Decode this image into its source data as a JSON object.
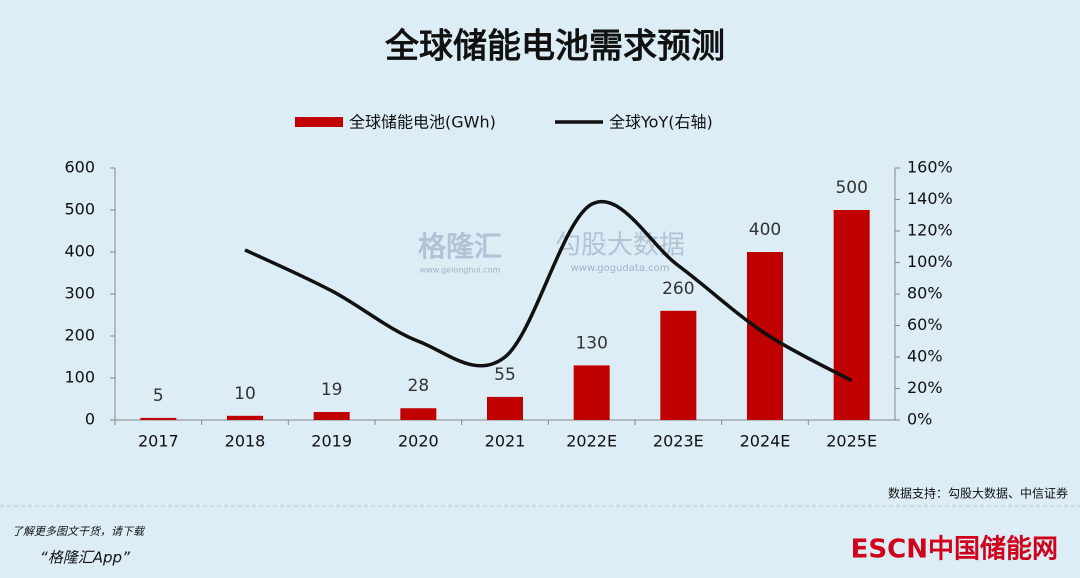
{
  "chart_data": {
    "type": "bar-line",
    "title": "全球储能电池需求预测",
    "categories": [
      "2017",
      "2018",
      "2019",
      "2020",
      "2021",
      "2022E",
      "2023E",
      "2024E",
      "2025E"
    ],
    "series": [
      {
        "name": "全球储能电池(GWh)",
        "type": "bar",
        "color": "#c00000",
        "values": [
          5,
          10,
          19,
          28,
          55,
          130,
          260,
          400,
          500
        ]
      },
      {
        "name": "全球YoY(右轴)",
        "type": "line",
        "axis": "y2",
        "color": "#111111",
        "values": [
          null,
          108,
          82,
          50,
          40,
          137,
          98,
          55,
          25
        ]
      }
    ],
    "ylim": [
      0,
      600
    ],
    "yticks": [
      0,
      100,
      200,
      300,
      400,
      500,
      600
    ],
    "y2lim": [
      0,
      160
    ],
    "y2ticks": [
      {
        "value": 0,
        "label": "0%"
      },
      {
        "value": 20,
        "label": "20%"
      },
      {
        "value": 40,
        "label": "40%"
      },
      {
        "value": 60,
        "label": "60%"
      },
      {
        "value": 80,
        "label": "80%"
      },
      {
        "value": 100,
        "label": "100%"
      },
      {
        "value": 120,
        "label": "120%"
      },
      {
        "value": 140,
        "label": "140%"
      },
      {
        "value": 160,
        "label": "160%"
      }
    ],
    "source": "数据支持：勾股大数据、中信证券",
    "watermarks": [
      "格隆汇",
      "www.gelonghui.com",
      "勾股大数据",
      "www.gogudata.com"
    ]
  },
  "footer": {
    "promo": "了解更多图文干货，请下载",
    "app": "“格隆汇App”",
    "logo": "ESCN中国储能网"
  }
}
